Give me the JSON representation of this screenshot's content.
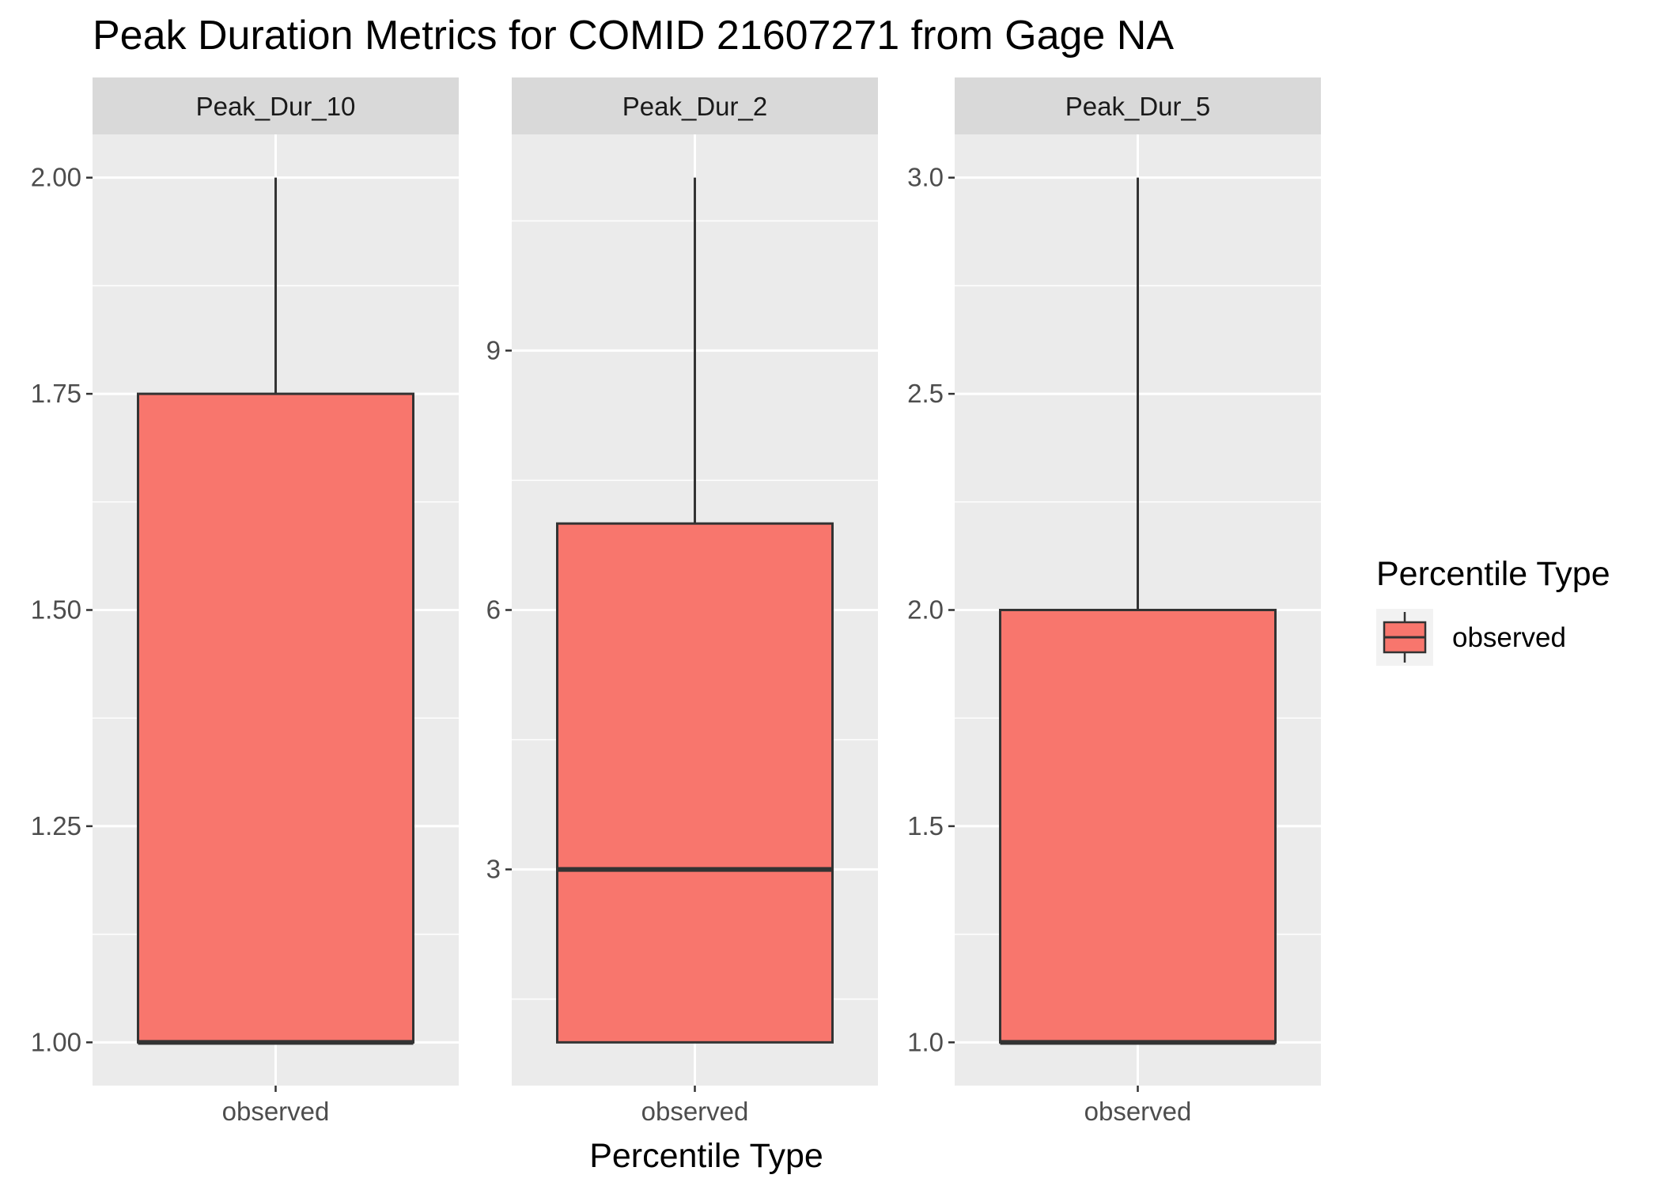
{
  "chart_data": {
    "type": "boxplot",
    "title": "Peak Duration Metrics for COMID 21607271 from Gage NA",
    "xlabel": "Percentile Type",
    "ylabel": "",
    "legend": {
      "title": "Percentile Type",
      "position": "right",
      "entries": [
        {
          "label": "observed",
          "color": "#F8766D"
        }
      ]
    },
    "colors": {
      "box_fill": "#F8766D",
      "box_line": "#333333",
      "panel_bg": "#EBEBEB",
      "strip_bg": "#D9D9D9",
      "grid": "#FFFFFF"
    },
    "grid": true,
    "panels": [
      {
        "strip": "Peak_Dur_10",
        "category": "observed",
        "ylim": [
          0.95,
          2.05
        ],
        "ticks": [
          1.0,
          1.25,
          1.5,
          1.75,
          2.0
        ],
        "tick_labels": [
          "1.00",
          "1.25",
          "1.50",
          "1.75",
          "2.00"
        ],
        "box": {
          "min": 1.0,
          "q1": 1.0,
          "median": 1.0,
          "q3": 1.75,
          "max": 2.0
        }
      },
      {
        "strip": "Peak_Dur_2",
        "category": "observed",
        "ylim": [
          0.5,
          11.5
        ],
        "ticks": [
          3,
          6,
          9
        ],
        "tick_labels": [
          "3",
          "6",
          "9"
        ],
        "box": {
          "min": 1.0,
          "q1": 1.0,
          "median": 3.0,
          "q3": 7.0,
          "max": 11.0
        }
      },
      {
        "strip": "Peak_Dur_5",
        "category": "observed",
        "ylim": [
          0.9,
          3.1
        ],
        "ticks": [
          1.0,
          1.5,
          2.0,
          2.5,
          3.0
        ],
        "tick_labels": [
          "1.0",
          "1.5",
          "2.0",
          "2.5",
          "3.0"
        ],
        "box": {
          "min": 1.0,
          "q1": 1.0,
          "median": 1.0,
          "q3": 2.0,
          "max": 3.0
        }
      }
    ]
  }
}
